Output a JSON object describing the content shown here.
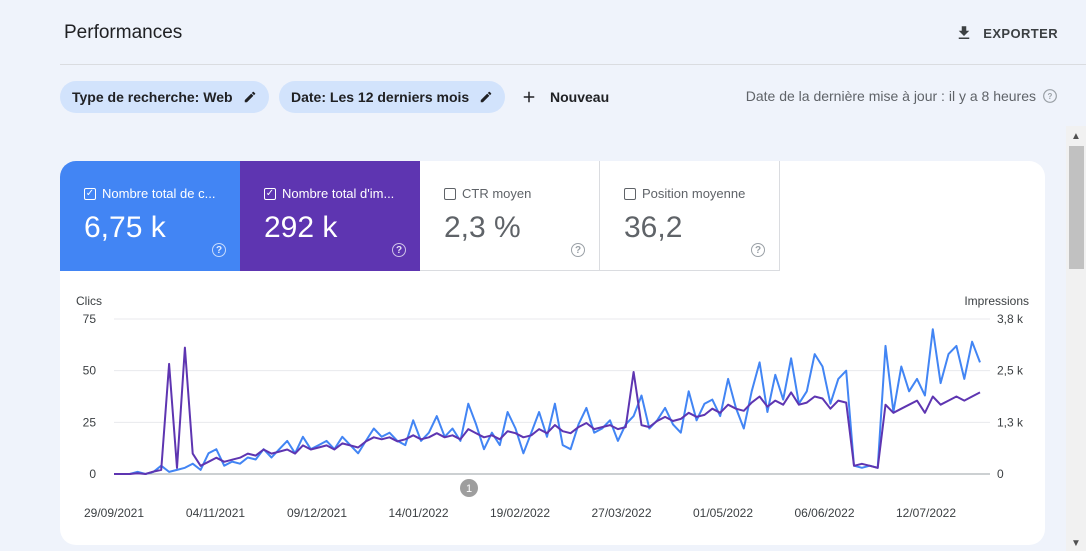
{
  "header": {
    "title": "Performances",
    "export_label": "EXPORTER"
  },
  "filters": {
    "search_type": "Type de recherche: Web",
    "date": "Date: Les 12 derniers mois",
    "new_label": "Nouveau",
    "last_updated": "Date de la dernière mise à jour : il y a 8 heures"
  },
  "metrics": [
    {
      "label": "Nombre total de c...",
      "value": "6,75 k",
      "checked": true,
      "color": "#4285f4"
    },
    {
      "label": "Nombre total d'im...",
      "value": "292 k",
      "checked": true,
      "color": "#5e35b1"
    },
    {
      "label": "CTR moyen",
      "value": "2,3 %",
      "checked": false
    },
    {
      "label": "Position moyenne",
      "value": "36,2",
      "checked": false
    }
  ],
  "annotation_marker": "1",
  "chart_data": {
    "type": "line",
    "ylabel_left": "Clics",
    "ylabel_right": "Impressions",
    "left_ticks": [
      "75",
      "50",
      "25",
      "0"
    ],
    "right_ticks": [
      "3,8 k",
      "2,5 k",
      "1,3 k",
      "0"
    ],
    "x_tick_labels": [
      "29/09/2021",
      "04/11/2021",
      "09/12/2021",
      "14/01/2022",
      "19/02/2022",
      "27/03/2022",
      "01/05/2022",
      "06/06/2022",
      "12/07/2022"
    ],
    "ylim_left": [
      0,
      75
    ],
    "ylim_right": [
      0,
      3800
    ],
    "series": [
      {
        "name": "Nombre total de clics",
        "axis": "left",
        "color": "#4285f4",
        "values": [
          0,
          0,
          0,
          1,
          0,
          1,
          4,
          1,
          2,
          3,
          5,
          2,
          10,
          12,
          4,
          6,
          5,
          8,
          7,
          12,
          8,
          12,
          16,
          10,
          18,
          12,
          14,
          16,
          12,
          18,
          14,
          10,
          16,
          22,
          18,
          20,
          16,
          14,
          26,
          16,
          20,
          28,
          18,
          22,
          16,
          34,
          24,
          12,
          20,
          14,
          30,
          22,
          10,
          20,
          30,
          18,
          34,
          14,
          12,
          24,
          32,
          20,
          22,
          26,
          16,
          24,
          28,
          38,
          22,
          26,
          32,
          24,
          20,
          40,
          26,
          34,
          36,
          28,
          46,
          32,
          22,
          40,
          54,
          30,
          48,
          36,
          56,
          34,
          40,
          58,
          52,
          34,
          46,
          50,
          4,
          3,
          4,
          3,
          62,
          30,
          52,
          40,
          46,
          38,
          70,
          44,
          58,
          62,
          46,
          64,
          54
        ]
      },
      {
        "name": "Nombre total d'impressions",
        "axis": "right",
        "color": "#5e35b1",
        "values": [
          0,
          0,
          0,
          20,
          0,
          60,
          100,
          2700,
          150,
          3100,
          500,
          200,
          300,
          400,
          300,
          350,
          400,
          500,
          450,
          600,
          500,
          550,
          600,
          500,
          700,
          600,
          650,
          700,
          600,
          750,
          700,
          650,
          800,
          900,
          850,
          900,
          800,
          850,
          950,
          850,
          900,
          1000,
          900,
          950,
          850,
          1100,
          1000,
          900,
          950,
          850,
          1050,
          1000,
          900,
          950,
          1100,
          1000,
          1200,
          1050,
          1000,
          1150,
          1250,
          1100,
          1150,
          1200,
          1100,
          1150,
          2500,
          1200,
          1150,
          1300,
          1400,
          1300,
          1350,
          1500,
          1400,
          1450,
          1600,
          1500,
          1700,
          1600,
          1550,
          1750,
          1900,
          1650,
          1800,
          1700,
          2000,
          1700,
          1750,
          1900,
          1850,
          1600,
          1800,
          1750,
          200,
          250,
          200,
          150,
          1700,
          1500,
          1600,
          1700,
          1800,
          1500,
          1900,
          1700,
          1800,
          1900,
          1800,
          1900,
          2000
        ]
      }
    ]
  }
}
